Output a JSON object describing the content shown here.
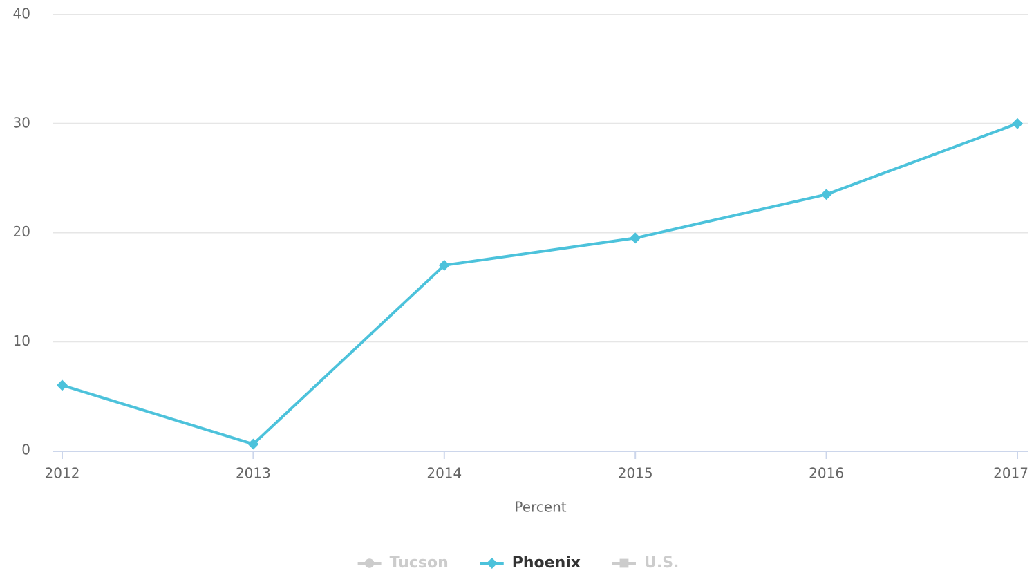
{
  "chart_data": {
    "type": "line",
    "x_label": "Percent",
    "categories": [
      "2012",
      "2013",
      "2014",
      "2015",
      "2016",
      "2017"
    ],
    "series": [
      {
        "name": "Tucson",
        "color": "#cccccc",
        "marker": "circle",
        "hidden": true,
        "values": [
          null,
          null,
          null,
          null,
          null,
          null
        ]
      },
      {
        "name": "Phoenix",
        "color": "#4cc2db",
        "marker": "diamond",
        "hidden": false,
        "values": [
          6.0,
          0.6,
          17.0,
          19.5,
          23.5,
          30.0
        ]
      },
      {
        "name": "U.S.",
        "color": "#cccccc",
        "marker": "square",
        "hidden": true,
        "values": [
          null,
          null,
          null,
          null,
          null,
          null
        ]
      }
    ],
    "ylim": [
      0,
      40
    ],
    "yticks": [
      0,
      10,
      20,
      30,
      40
    ],
    "grid": true
  }
}
